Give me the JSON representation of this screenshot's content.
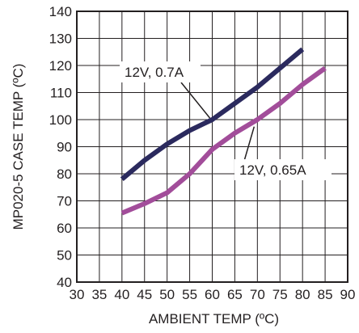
{
  "chart_data": {
    "type": "line",
    "xlabel": "AMBIENT TEMP (ºC)",
    "ylabel": "MP020-5 CASE TEMP (ºC)",
    "xlim": [
      30,
      90
    ],
    "ylim": [
      40,
      140
    ],
    "xticks": [
      "30",
      "35",
      "40",
      "45",
      "50",
      "55",
      "60",
      "65",
      "70",
      "75",
      "80",
      "85",
      "90"
    ],
    "yticks": [
      "40",
      "50",
      "60",
      "70",
      "80",
      "90",
      "100",
      "110",
      "120",
      "130",
      "140"
    ],
    "grid": true,
    "series": [
      {
        "name": "12V, 0.7A",
        "color": "#2b2a5e",
        "x": [
          40,
          45,
          50,
          55,
          60,
          65,
          70,
          75,
          80
        ],
        "y": [
          78,
          85,
          91,
          96,
          100,
          106,
          112,
          119,
          126
        ]
      },
      {
        "name": "12V, 0.65A",
        "color": "#a24d9a",
        "x": [
          40,
          45,
          50,
          55,
          60,
          65,
          70,
          75,
          80,
          85
        ],
        "y": [
          65.5,
          69,
          73,
          80,
          89,
          95,
          100,
          106,
          113,
          119
        ]
      }
    ],
    "annotations": [
      {
        "text": "12V, 0.7A",
        "series": 0,
        "target": [
          60,
          100
        ]
      },
      {
        "text": "12V, 0.65A",
        "series": 1,
        "target": [
          69,
          98
        ]
      }
    ]
  }
}
